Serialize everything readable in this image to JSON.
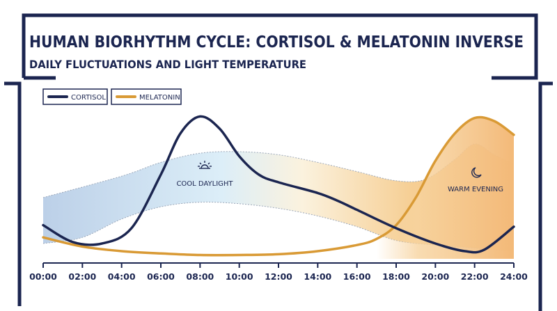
{
  "title": "HUMAN BIORHYTHM CYCLE: CORTISOL & MELATONIN INVERSE",
  "subtitle": "DAILY FLUCTUATIONS AND LIGHT TEMPERATURE",
  "colors": {
    "frame": "#1b2550",
    "cortisol": "#1b2550",
    "melatonin": "#d99a35",
    "cool_band": "#cfe0f0",
    "warm_band": "#f5c98c"
  },
  "chart_data": {
    "type": "line",
    "x_ticks": [
      "00:00",
      "02:00",
      "04:00",
      "06:00",
      "08:00",
      "10:00",
      "12:00",
      "14:00",
      "16:00",
      "18:00",
      "20:00",
      "22:00",
      "24:00"
    ],
    "xlim": [
      0,
      24
    ],
    "ylim": [
      0,
      100
    ],
    "y_axis_labels_shown": false,
    "grid": false,
    "legend_position": "top-left",
    "series": [
      {
        "name": "CORTISOL",
        "color": "#1b2550",
        "points": [
          [
            0,
            22
          ],
          [
            1.5,
            11
          ],
          [
            3,
            10
          ],
          [
            4.5,
            20
          ],
          [
            6,
            55
          ],
          [
            7,
            82
          ],
          [
            8,
            93
          ],
          [
            9,
            85
          ],
          [
            10,
            67
          ],
          [
            11,
            55
          ],
          [
            12,
            50
          ],
          [
            14,
            43
          ],
          [
            15,
            38
          ],
          [
            16,
            32
          ],
          [
            18,
            20
          ],
          [
            20,
            10
          ],
          [
            21.5,
            5
          ],
          [
            22.5,
            6
          ],
          [
            24,
            21
          ]
        ]
      },
      {
        "name": "MELATONIN",
        "color": "#d99a35",
        "points": [
          [
            0,
            14
          ],
          [
            2,
            8
          ],
          [
            4,
            5
          ],
          [
            6,
            3.5
          ],
          [
            8,
            2.5
          ],
          [
            10,
            2.5
          ],
          [
            12,
            3
          ],
          [
            14,
            5
          ],
          [
            16,
            9
          ],
          [
            17,
            13
          ],
          [
            18,
            22
          ],
          [
            19,
            40
          ],
          [
            20,
            64
          ],
          [
            21,
            82
          ],
          [
            22,
            92
          ],
          [
            23,
            90
          ],
          [
            24,
            81
          ]
        ]
      }
    ],
    "light_band": {
      "upper": [
        [
          0,
          40
        ],
        [
          4,
          54
        ],
        [
          6,
          63
        ],
        [
          8,
          69
        ],
        [
          10,
          70
        ],
        [
          12,
          68
        ],
        [
          14,
          63
        ],
        [
          16,
          57
        ],
        [
          18,
          51
        ],
        [
          19.5,
          52
        ],
        [
          21,
          65
        ],
        [
          22,
          75
        ],
        [
          23,
          68
        ],
        [
          24,
          62
        ]
      ],
      "lower": [
        [
          0,
          10
        ],
        [
          2,
          14
        ],
        [
          4,
          26
        ],
        [
          6,
          34
        ],
        [
          8,
          37
        ],
        [
          10,
          36
        ],
        [
          12,
          33
        ],
        [
          14,
          28
        ],
        [
          16,
          21
        ],
        [
          18,
          12
        ],
        [
          20,
          9
        ],
        [
          22,
          7
        ],
        [
          24,
          5
        ]
      ]
    },
    "annotations": [
      {
        "text": "COOL DAYLIGHT",
        "icon": "sun-icon",
        "x": 8
      },
      {
        "text": "WARM EVENING",
        "icon": "moon-icon",
        "x": 22.3
      }
    ]
  }
}
